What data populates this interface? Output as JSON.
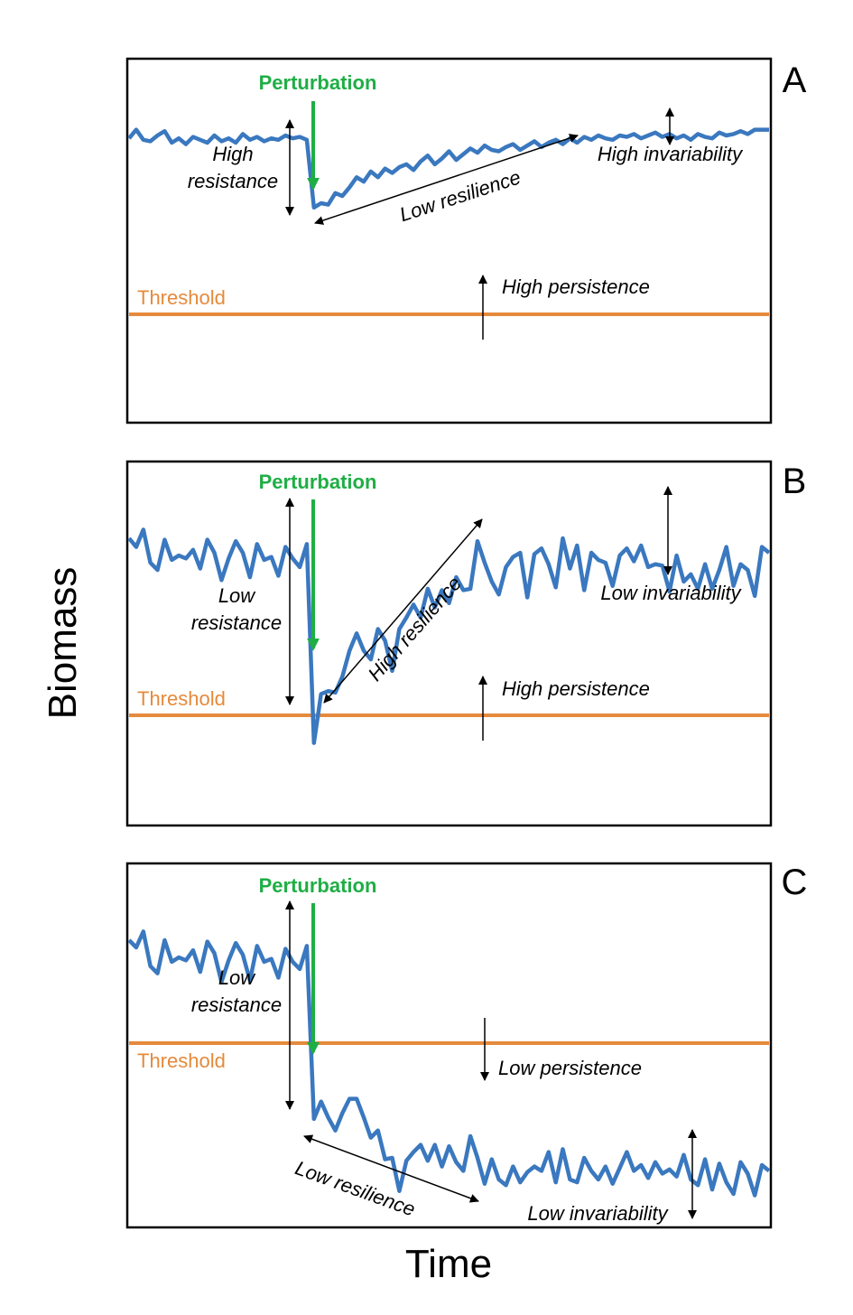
{
  "colors": {
    "series": "#3a78bf",
    "threshold": "#e58a3c",
    "perturbation": "#1fae45",
    "annotation": "#000000",
    "frame": "#000000"
  },
  "figure": {
    "ylabel": "Biomass",
    "xlabel": "Time"
  },
  "chart_data": [
    {
      "type": "line",
      "panel": "A",
      "threshold": 5,
      "threshold_label": "Threshold",
      "perturbation_label": "Perturbation",
      "perturbation_x": 25,
      "xlim": [
        0,
        90
      ],
      "ylim": [
        0,
        25
      ],
      "annotations": {
        "resistance": [
          "High",
          "resistance"
        ],
        "resilience": "Low resilience",
        "invariability": "High invariability",
        "persistence": "High persistence"
      },
      "values": [
        19.6,
        20.2,
        19.5,
        19.4,
        19.8,
        20.1,
        19.3,
        19.6,
        19.2,
        19.7,
        19.5,
        19.3,
        19.8,
        19.4,
        19.6,
        19.3,
        19.9,
        19.5,
        19.7,
        19.4,
        19.6,
        19.5,
        19.8,
        19.6,
        19.7,
        19.5,
        14.8,
        15.1,
        15.0,
        15.8,
        15.6,
        16.2,
        16.9,
        16.6,
        17.3,
        16.9,
        17.5,
        17.2,
        17.6,
        17.8,
        17.4,
        18.0,
        18.4,
        17.8,
        18.2,
        18.7,
        18.1,
        18.5,
        18.9,
        18.6,
        19.1,
        18.8,
        18.7,
        19.0,
        19.2,
        18.8,
        19.1,
        19.4,
        19.0,
        19.3,
        19.5,
        19.2,
        19.6,
        19.3,
        19.7,
        19.5,
        19.8,
        19.6,
        19.5,
        19.8,
        19.7,
        19.9,
        19.6,
        19.8,
        20.0,
        19.7,
        19.9,
        19.6,
        19.8,
        19.5,
        19.9,
        19.7,
        19.6,
        20.0,
        19.8,
        19.9,
        20.1,
        19.9,
        20.2,
        20.2,
        20.2
      ]
    },
    {
      "type": "line",
      "panel": "B",
      "threshold": 5,
      "threshold_label": "Threshold",
      "perturbation_label": "Perturbation",
      "perturbation_x": 25,
      "xlim": [
        0,
        90
      ],
      "ylim": [
        0,
        25
      ],
      "annotations": {
        "resistance": [
          "Low",
          "resistance"
        ],
        "resilience": "High resilience",
        "invariability": "Low invariability",
        "persistence": "High persistence"
      },
      "values": [
        19.8,
        19.2,
        20.4,
        18.1,
        17.6,
        19.7,
        18.3,
        18.6,
        18.4,
        19.0,
        17.7,
        19.7,
        18.8,
        16.9,
        18.4,
        19.6,
        18.8,
        17.1,
        19.4,
        18.3,
        18.5,
        17.2,
        19.2,
        18.4,
        17.8,
        19.4,
        5.6,
        9.0,
        9.2,
        9.1,
        10.2,
        12.0,
        13.2,
        12.0,
        11.4,
        13.5,
        12.7,
        10.6,
        13.5,
        14.3,
        15.2,
        14.3,
        16.3,
        15.0,
        16.2,
        15.3,
        17.1,
        16.2,
        16.3,
        19.6,
        18.1,
        16.8,
        15.9,
        17.8,
        18.5,
        18.8,
        15.7,
        18.7,
        19.1,
        18.0,
        16.4,
        19.8,
        17.7,
        19.3,
        16.2,
        18.8,
        18.3,
        18.1,
        16.5,
        18.6,
        19.1,
        18.2,
        19.3,
        17.8,
        18.0,
        17.9,
        16.1,
        18.6,
        16.8,
        17.3,
        16.3,
        18.0,
        16.3,
        17.6,
        19.2,
        16.5,
        18.0,
        17.6,
        15.8,
        19.2,
        18.8
      ]
    },
    {
      "type": "line",
      "panel": "C",
      "threshold": 11,
      "threshold_label": "Threshold",
      "perturbation_label": "Perturbation",
      "perturbation_x": 25,
      "xlim": [
        0,
        90
      ],
      "ylim": [
        0,
        25
      ],
      "annotations": {
        "resistance": [
          "Low",
          "resistance"
        ],
        "resilience": "Low resilience",
        "invariability": "Low invariability",
        "persistence": "Low persistence"
      },
      "values": [
        19.8,
        19.3,
        20.4,
        18.0,
        17.5,
        19.8,
        18.3,
        18.6,
        18.4,
        19.1,
        17.6,
        19.7,
        18.9,
        16.9,
        18.4,
        19.6,
        18.8,
        17.0,
        19.4,
        18.3,
        18.5,
        17.2,
        19.2,
        18.3,
        17.8,
        19.4,
        7.4,
        8.6,
        7.5,
        6.6,
        7.8,
        8.8,
        8.8,
        7.5,
        6.1,
        6.6,
        4.6,
        4.7,
        2.4,
        4.5,
        5.1,
        5.6,
        4.5,
        5.6,
        4.1,
        5.5,
        4.4,
        3.8,
        6.2,
        4.7,
        2.9,
        4.6,
        3.2,
        2.8,
        4.1,
        3.0,
        3.7,
        4.1,
        3.8,
        5.1,
        3.0,
        5.3,
        3.2,
        3.0,
        4.7,
        3.8,
        3.2,
        4.1,
        2.9,
        4.0,
        5.1,
        3.8,
        4.2,
        3.3,
        4.4,
        3.6,
        3.9,
        3.4,
        4.9,
        3.2,
        2.8,
        4.6,
        2.5,
        4.3,
        3.0,
        2.2,
        4.4,
        3.6,
        2.1,
        4.2,
        3.8
      ]
    }
  ]
}
